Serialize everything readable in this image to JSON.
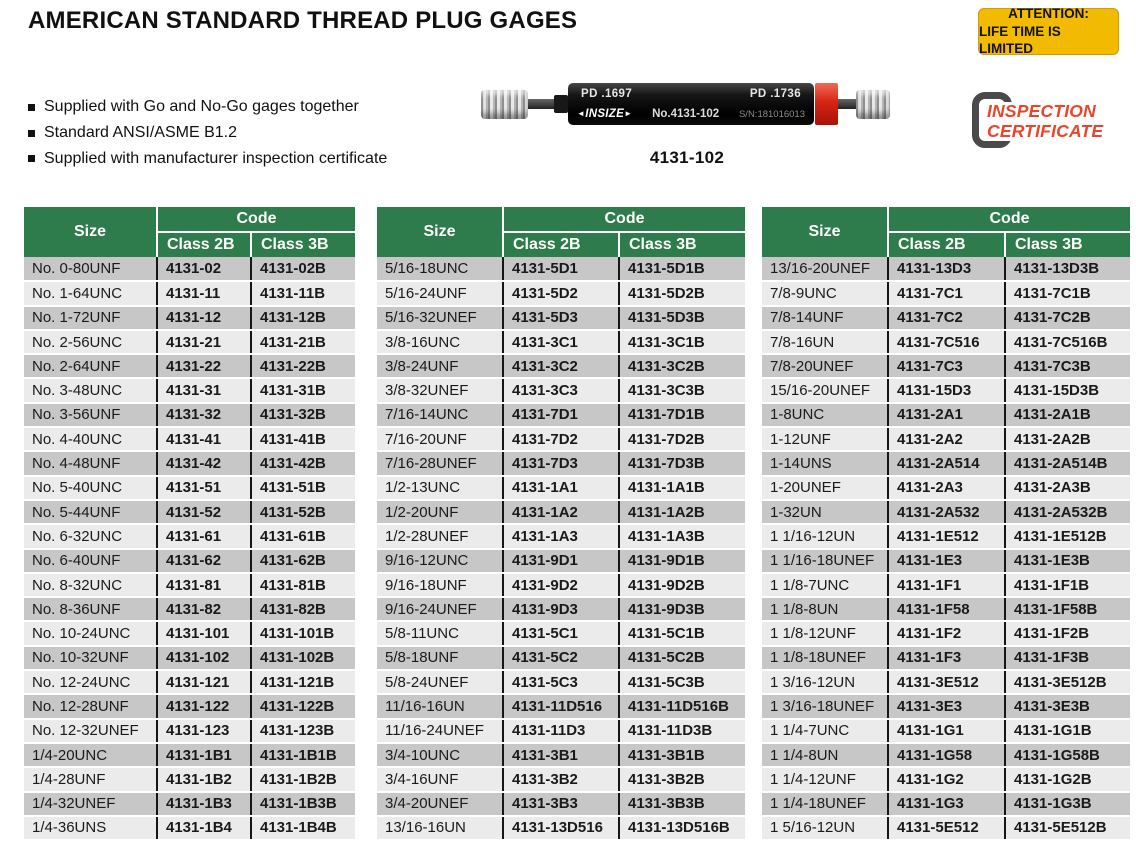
{
  "page_title": "AMERICAN STANDARD THREAD PLUG GAGES",
  "attention": {
    "line1": "ATTENTION:",
    "line2": "LIFE TIME IS LIMITED"
  },
  "bullets": [
    "Supplied with Go and No-Go gages together",
    "Standard ANSI/ASME B1.2",
    "Supplied with manufacturer inspection certificate"
  ],
  "product": {
    "pd_left": "PD .1697",
    "pd_right": "PD .1736",
    "brand": "INSIZE",
    "model_no": "No.4131-102",
    "serial": "S/N:181016013",
    "caption": "4131-102"
  },
  "certificate": {
    "line1": "INSPECTION",
    "line2": "CERTIFICATE"
  },
  "colors": {
    "header_green": "#2e7b4b",
    "row_gray": "#c7c7c7",
    "row_light": "#ebebeb",
    "attention_yellow": "#f2ba00",
    "certificate_red": "#e8462a",
    "gage_ring_red": "#d62513"
  },
  "tables": [
    {
      "headers": {
        "size": "Size",
        "code": "Code",
        "class2b": "Class 2B",
        "class3b": "Class 3B"
      },
      "rows": [
        [
          "No. 0-80UNF",
          "4131-02",
          "4131-02B"
        ],
        [
          "No. 1-64UNC",
          "4131-11",
          "4131-11B"
        ],
        [
          "No. 1-72UNF",
          "4131-12",
          "4131-12B"
        ],
        [
          "No. 2-56UNC",
          "4131-21",
          "4131-21B"
        ],
        [
          "No. 2-64UNF",
          "4131-22",
          "4131-22B"
        ],
        [
          "No. 3-48UNC",
          "4131-31",
          "4131-31B"
        ],
        [
          "No. 3-56UNF",
          "4131-32",
          "4131-32B"
        ],
        [
          "No. 4-40UNC",
          "4131-41",
          "4131-41B"
        ],
        [
          "No. 4-48UNF",
          "4131-42",
          "4131-42B"
        ],
        [
          "No. 5-40UNC",
          "4131-51",
          "4131-51B"
        ],
        [
          "No. 5-44UNF",
          "4131-52",
          "4131-52B"
        ],
        [
          "No. 6-32UNC",
          "4131-61",
          "4131-61B"
        ],
        [
          "No. 6-40UNF",
          "4131-62",
          "4131-62B"
        ],
        [
          "No. 8-32UNC",
          "4131-81",
          "4131-81B"
        ],
        [
          "No. 8-36UNF",
          "4131-82",
          "4131-82B"
        ],
        [
          "No. 10-24UNC",
          "4131-101",
          "4131-101B"
        ],
        [
          "No. 10-32UNF",
          "4131-102",
          "4131-102B"
        ],
        [
          "No. 12-24UNC",
          "4131-121",
          "4131-121B"
        ],
        [
          "No. 12-28UNF",
          "4131-122",
          "4131-122B"
        ],
        [
          "No. 12-32UNEF",
          "4131-123",
          "4131-123B"
        ],
        [
          "1/4-20UNC",
          "4131-1B1",
          "4131-1B1B"
        ],
        [
          "1/4-28UNF",
          "4131-1B2",
          "4131-1B2B"
        ],
        [
          "1/4-32UNEF",
          "4131-1B3",
          "4131-1B3B"
        ],
        [
          "1/4-36UNS",
          "4131-1B4",
          "4131-1B4B"
        ]
      ]
    },
    {
      "headers": {
        "size": "Size",
        "code": "Code",
        "class2b": "Class 2B",
        "class3b": "Class 3B"
      },
      "rows": [
        [
          "5/16-18UNC",
          "4131-5D1",
          "4131-5D1B"
        ],
        [
          "5/16-24UNF",
          "4131-5D2",
          "4131-5D2B"
        ],
        [
          "5/16-32UNEF",
          "4131-5D3",
          "4131-5D3B"
        ],
        [
          "3/8-16UNC",
          "4131-3C1",
          "4131-3C1B"
        ],
        [
          "3/8-24UNF",
          "4131-3C2",
          "4131-3C2B"
        ],
        [
          "3/8-32UNEF",
          "4131-3C3",
          "4131-3C3B"
        ],
        [
          "7/16-14UNC",
          "4131-7D1",
          "4131-7D1B"
        ],
        [
          "7/16-20UNF",
          "4131-7D2",
          "4131-7D2B"
        ],
        [
          "7/16-28UNEF",
          "4131-7D3",
          "4131-7D3B"
        ],
        [
          "1/2-13UNC",
          "4131-1A1",
          "4131-1A1B"
        ],
        [
          "1/2-20UNF",
          "4131-1A2",
          "4131-1A2B"
        ],
        [
          "1/2-28UNEF",
          "4131-1A3",
          "4131-1A3B"
        ],
        [
          "9/16-12UNC",
          "4131-9D1",
          "4131-9D1B"
        ],
        [
          "9/16-18UNF",
          "4131-9D2",
          "4131-9D2B"
        ],
        [
          "9/16-24UNEF",
          "4131-9D3",
          "4131-9D3B"
        ],
        [
          "5/8-11UNC",
          "4131-5C1",
          "4131-5C1B"
        ],
        [
          "5/8-18UNF",
          "4131-5C2",
          "4131-5C2B"
        ],
        [
          "5/8-24UNEF",
          "4131-5C3",
          "4131-5C3B"
        ],
        [
          "11/16-16UN",
          "4131-11D516",
          "4131-11D516B"
        ],
        [
          "11/16-24UNEF",
          "4131-11D3",
          "4131-11D3B"
        ],
        [
          "3/4-10UNC",
          "4131-3B1",
          "4131-3B1B"
        ],
        [
          "3/4-16UNF",
          "4131-3B2",
          "4131-3B2B"
        ],
        [
          "3/4-20UNEF",
          "4131-3B3",
          "4131-3B3B"
        ],
        [
          "13/16-16UN",
          "4131-13D516",
          "4131-13D516B"
        ]
      ]
    },
    {
      "headers": {
        "size": "Size",
        "code": "Code",
        "class2b": "Class 2B",
        "class3b": "Class 3B"
      },
      "rows": [
        [
          "13/16-20UNEF",
          "4131-13D3",
          "4131-13D3B"
        ],
        [
          "7/8-9UNC",
          "4131-7C1",
          "4131-7C1B"
        ],
        [
          "7/8-14UNF",
          "4131-7C2",
          "4131-7C2B"
        ],
        [
          "7/8-16UN",
          "4131-7C516",
          "4131-7C516B"
        ],
        [
          "7/8-20UNEF",
          "4131-7C3",
          "4131-7C3B"
        ],
        [
          "15/16-20UNEF",
          "4131-15D3",
          "4131-15D3B"
        ],
        [
          "1-8UNC",
          "4131-2A1",
          "4131-2A1B"
        ],
        [
          "1-12UNF",
          "4131-2A2",
          "4131-2A2B"
        ],
        [
          "1-14UNS",
          "4131-2A514",
          "4131-2A514B"
        ],
        [
          "1-20UNEF",
          "4131-2A3",
          "4131-2A3B"
        ],
        [
          "1-32UN",
          "4131-2A532",
          "4131-2A532B"
        ],
        [
          "1 1/16-12UN",
          "4131-1E512",
          "4131-1E512B"
        ],
        [
          "1 1/16-18UNEF",
          "4131-1E3",
          "4131-1E3B"
        ],
        [
          "1 1/8-7UNC",
          "4131-1F1",
          "4131-1F1B"
        ],
        [
          "1 1/8-8UN",
          "4131-1F58",
          "4131-1F58B"
        ],
        [
          "1 1/8-12UNF",
          "4131-1F2",
          "4131-1F2B"
        ],
        [
          "1 1/8-18UNEF",
          "4131-1F3",
          "4131-1F3B"
        ],
        [
          "1 3/16-12UN",
          "4131-3E512",
          "4131-3E512B"
        ],
        [
          "1 3/16-18UNEF",
          "4131-3E3",
          "4131-3E3B"
        ],
        [
          "1 1/4-7UNC",
          "4131-1G1",
          "4131-1G1B"
        ],
        [
          "1 1/4-8UN",
          "4131-1G58",
          "4131-1G58B"
        ],
        [
          "1 1/4-12UNF",
          "4131-1G2",
          "4131-1G2B"
        ],
        [
          "1 1/4-18UNEF",
          "4131-1G3",
          "4131-1G3B"
        ],
        [
          "1 5/16-12UN",
          "4131-5E512",
          "4131-5E512B"
        ]
      ]
    }
  ]
}
